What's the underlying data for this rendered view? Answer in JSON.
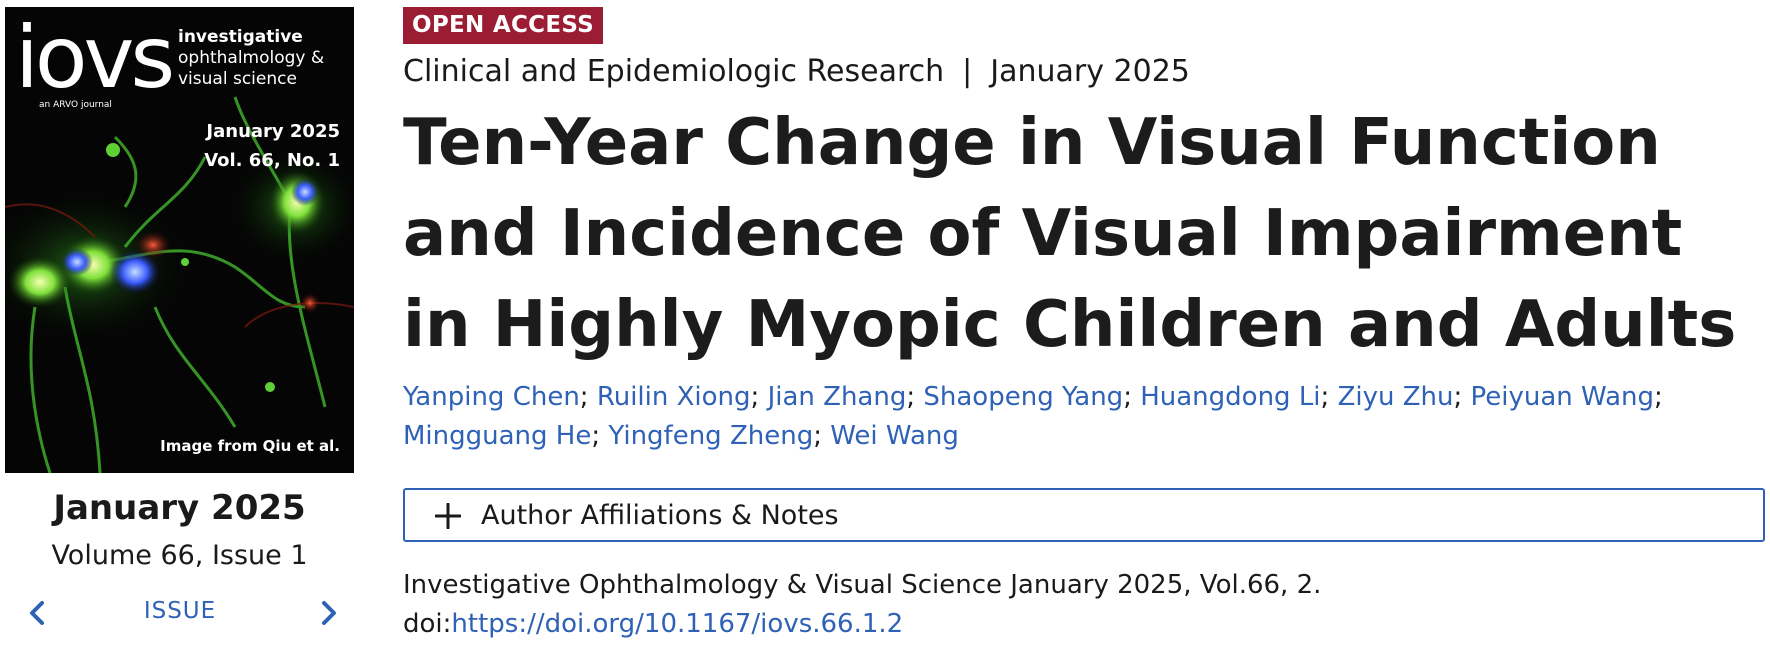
{
  "cover": {
    "masthead": "iovs",
    "journal_line1": "investigative",
    "journal_line2": "ophthalmology &",
    "journal_line3": "visual science",
    "arvo_tag": "an ARVO journal",
    "cover_date": "January 2025",
    "cover_volume": "Vol. 66, No. 1",
    "image_credit": "Image from Qiu et al."
  },
  "issue": {
    "date": "January 2025",
    "volume": "Volume 66, Issue 1",
    "nav_label": "ISSUE"
  },
  "article": {
    "access_badge": "OPEN ACCESS",
    "section": "Clinical and Epidemiologic Research",
    "separator": "|",
    "pub_date": "January 2025",
    "title": "Ten-Year Change in Visual Function and Incidence of Visual Impairment in Highly Myopic Children and Adults",
    "authors": [
      "Yanping Chen",
      "Ruilin Xiong",
      "Jian Zhang",
      "Shaopeng Yang",
      "Huangdong Li",
      "Ziyu Zhu",
      "Peiyuan Wang",
      "Mingguang He",
      "Yingfeng Zheng",
      "Wei Wang"
    ],
    "author_separator": ";",
    "affiliations_label": "Author Affiliations & Notes",
    "citation_text": "Investigative Ophthalmology & Visual Science January 2025, Vol.66, 2.",
    "doi_prefix": "doi:",
    "doi_link": "https://doi.org/10.1167/iovs.66.1.2"
  },
  "icons": {
    "prev": "chevron-left-icon",
    "next": "chevron-right-icon",
    "expand": "plus-icon"
  },
  "colors": {
    "link": "#2f62b6",
    "badge_bg": "#9b1d33",
    "text": "#1a1a1a"
  }
}
